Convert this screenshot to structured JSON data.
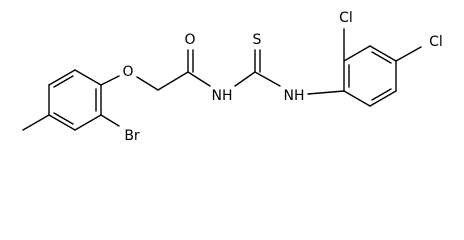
{
  "labels": [
    "O",
    "O",
    "S",
    "NH",
    "NH",
    "Cl",
    "Cl",
    "Br"
  ]
}
